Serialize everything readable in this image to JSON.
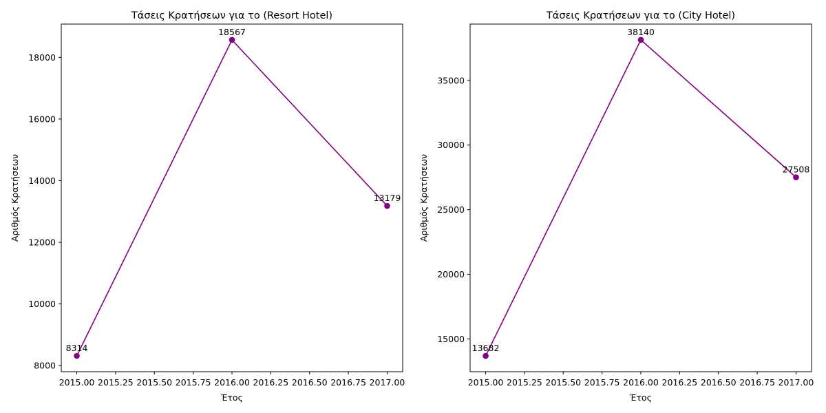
{
  "chart_data": [
    {
      "type": "line",
      "title": "Τάσεις Κρατήσεων για το (Resort Hotel)",
      "xlabel": "Έτος",
      "ylabel": "Αριθμός Κρατήσεων",
      "x": [
        2015,
        2016,
        2017
      ],
      "series": [
        {
          "values": [
            8314,
            18567,
            13179
          ]
        }
      ],
      "data_labels": [
        "8314",
        "18567",
        "13179"
      ],
      "xlim": [
        2014.9,
        2017.1
      ],
      "ylim": [
        7800,
        19080
      ],
      "xticks": [
        2015.0,
        2015.25,
        2015.5,
        2015.75,
        2016.0,
        2016.25,
        2016.5,
        2016.75,
        2017.0
      ],
      "xtick_labels": [
        "2015.00",
        "2015.25",
        "2015.50",
        "2015.75",
        "2016.00",
        "2016.25",
        "2016.50",
        "2016.75",
        "2017.00"
      ],
      "yticks": [
        8000,
        10000,
        12000,
        14000,
        16000,
        18000
      ],
      "ytick_labels": [
        "8000",
        "10000",
        "12000",
        "14000",
        "16000",
        "18000"
      ],
      "line_color": "#800080",
      "marker": "circle",
      "grid": false,
      "legend": "none"
    },
    {
      "type": "line",
      "title": "Τάσεις Κρατήσεων για το (City Hotel)",
      "xlabel": "Έτος",
      "ylabel": "Αριθμός Κρατήσεων",
      "x": [
        2015,
        2016,
        2017
      ],
      "series": [
        {
          "values": [
            13682,
            38140,
            27508
          ]
        }
      ],
      "data_labels": [
        "13682",
        "38140",
        "27508"
      ],
      "xlim": [
        2014.9,
        2017.1
      ],
      "ylim": [
        12459,
        39363
      ],
      "xticks": [
        2015.0,
        2015.25,
        2015.5,
        2015.75,
        2016.0,
        2016.25,
        2016.5,
        2016.75,
        2017.0
      ],
      "xtick_labels": [
        "2015.00",
        "2015.25",
        "2015.50",
        "2015.75",
        "2016.00",
        "2016.25",
        "2016.50",
        "2016.75",
        "2017.00"
      ],
      "yticks": [
        15000,
        20000,
        25000,
        30000,
        35000
      ],
      "ytick_labels": [
        "15000",
        "20000",
        "25000",
        "30000",
        "35000"
      ],
      "line_color": "#800080",
      "marker": "circle",
      "grid": false,
      "legend": "none"
    }
  ]
}
